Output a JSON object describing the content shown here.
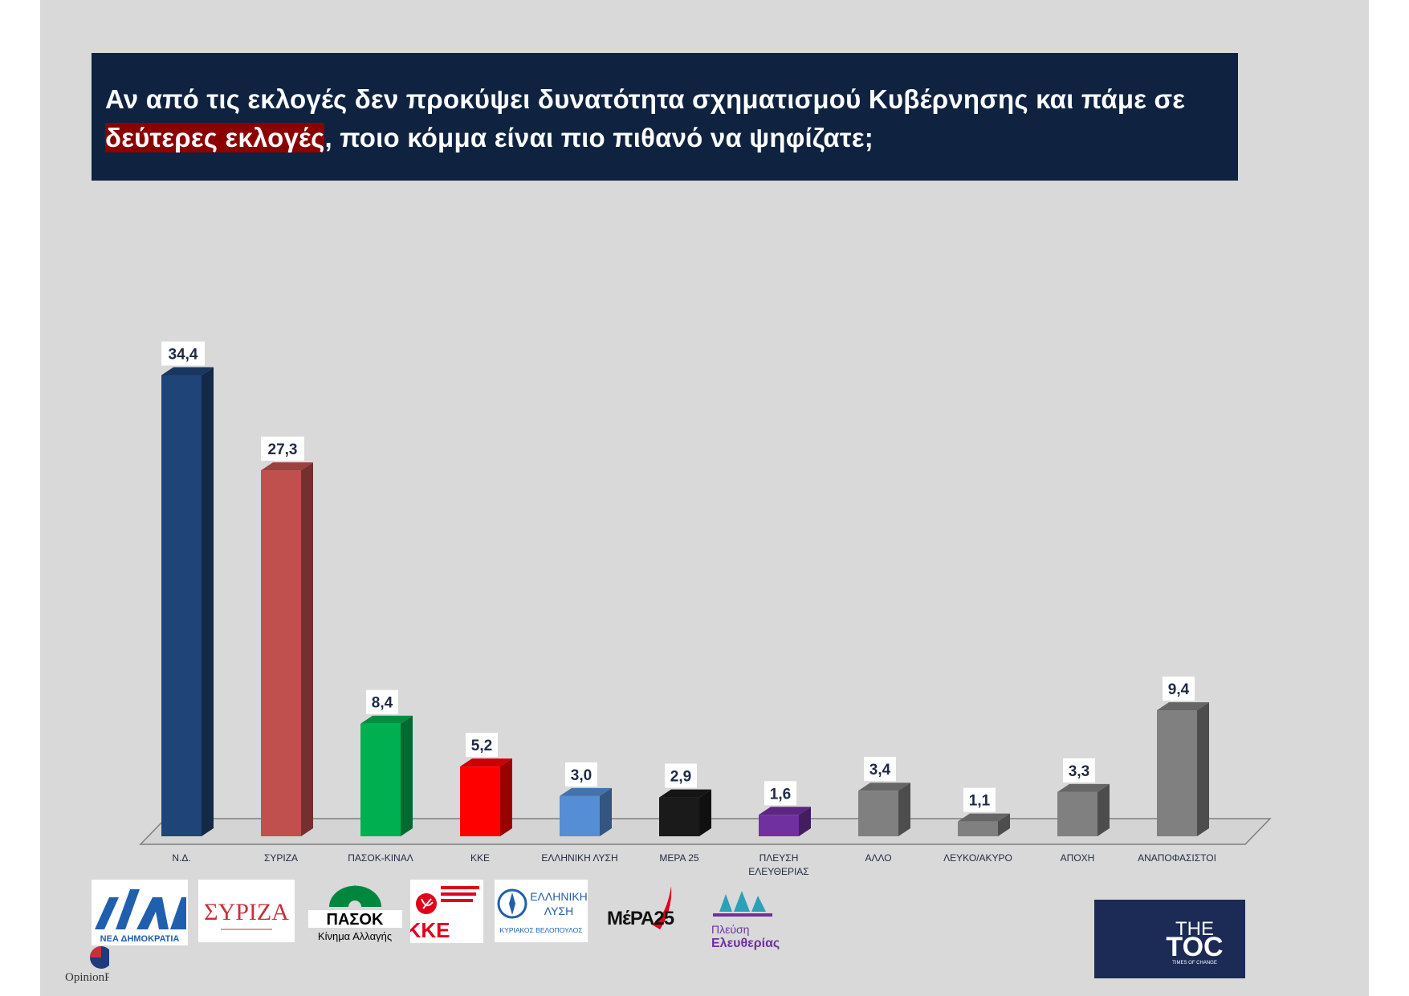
{
  "title": {
    "part1": "Αν από τις εκλογές δεν προκύψει δυνατότητα σχηματισμού Κυβέρνησης και πάμε σε",
    "highlight": "δεύτερες εκλογές",
    "part2": ", ποιο κόμμα είναι πιο πιθανό να ψηφίζατε;"
  },
  "colors": {
    "title_bg": "#0f2340",
    "highlight_bg": "#8b0000",
    "page_bg": "#d9d9d9"
  },
  "chart_data": {
    "type": "bar",
    "categories": [
      "Ν.Δ.",
      "ΣΥΡΙΖΑ",
      "ΠΑΣΟΚ-ΚΙΝΑΛ",
      "ΚΚΕ",
      "ΕΛΛΗΝΙΚΗ ΛΥΣΗ",
      "ΜΕΡΑ 25",
      "ΠΛΕΥΣΗ ΕΛΕΥΘΕΡΙΑΣ",
      "ΑΛΛΟ",
      "ΛΕΥΚΟ/ΑΚΥΡΟ",
      "ΑΠΟΧΗ",
      "ΑΝΑΠΟΦΑΣΙΣΤΟΙ"
    ],
    "values": [
      34.4,
      27.3,
      8.4,
      5.2,
      3.0,
      2.9,
      1.6,
      3.4,
      1.1,
      3.3,
      9.4
    ],
    "data_labels": [
      "34,4",
      "27,3",
      "8,4",
      "5,2",
      "3,0",
      "2,9",
      "1,6",
      "3,4",
      "1,1",
      "3,3",
      "9,4"
    ],
    "bar_colors": [
      "#1f4477",
      "#c0504d",
      "#00b050",
      "#ff0000",
      "#558ed5",
      "#1a1a1a",
      "#7030a0",
      "#808080",
      "#808080",
      "#808080",
      "#808080"
    ],
    "ylim": [
      0,
      36
    ],
    "grid": false,
    "legend": "none",
    "title": "",
    "xlabel": "",
    "ylabel": ""
  },
  "logos": {
    "nd": {
      "icon": "nd-logo",
      "text": "ΝΕΑ ΔΗΜΟΚΡΑΤΙΑ",
      "color": "#1f5fae"
    },
    "syriza": {
      "icon": "syriza-logo",
      "text": "ΣΥΡΙΖΑ",
      "color": "#c8303a"
    },
    "pasok": {
      "icon": "pasok-logo",
      "text": "ΠΑΣΟΚ",
      "subtext": "Κίνημα Αλλαγής",
      "color": "#00873e"
    },
    "kke": {
      "icon": "kke-logo",
      "text": "ΚΚΕ",
      "color": "#e2001a"
    },
    "elliniki": {
      "icon": "elliniki-lysi-logo",
      "text1": "ΕΛΛΗΝΙΚΗ",
      "text2": "ΛΥΣΗ",
      "text3": "ΚΥΡΙΑΚΟΣ ΒΕΛΟΠΟΥΛΟΣ",
      "color": "#1f5fae"
    },
    "mera": {
      "icon": "mera25-logo",
      "text": "ΜέΡΑ25",
      "color": "#e2001a"
    },
    "plefsi": {
      "icon": "plefsi-logo",
      "text1": "Πλεύση",
      "text2": "Ελευθερίας",
      "color": "#7030a0"
    },
    "opinion": {
      "icon": "opinionpoll-logo",
      "text": "OpinionPoll"
    },
    "toc": {
      "icon": "thetoc-logo",
      "text1": "THE",
      "text2": "TOC",
      "text3": "TIMES OF CHANGE"
    }
  }
}
